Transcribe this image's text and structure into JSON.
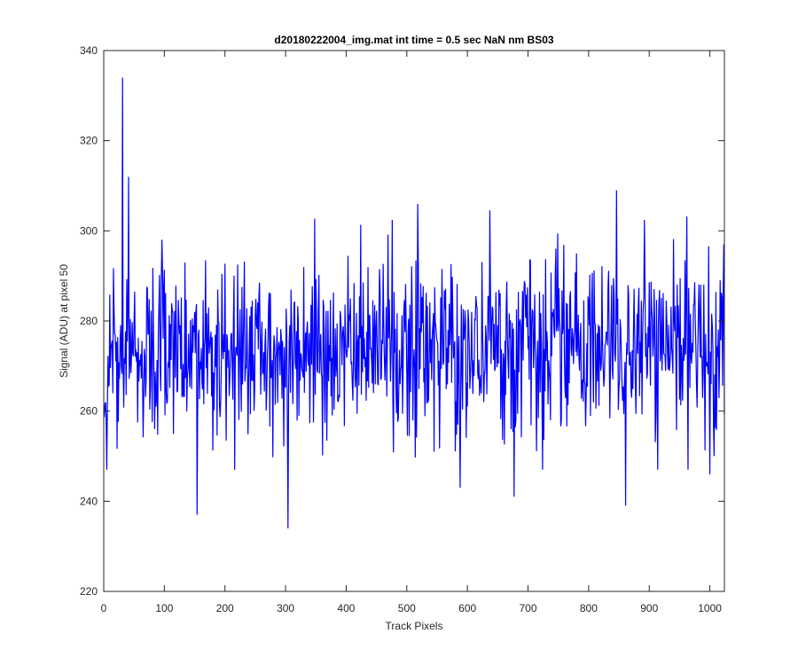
{
  "chart_data": {
    "type": "line",
    "title": "d20180222004_img.mat int time = 0.5 sec  NaN nm BS03",
    "xlabel": "Track Pixels",
    "ylabel": "Signal (ADU) at pixel 50",
    "xlim": [
      0,
      1024
    ],
    "ylim": [
      220,
      340
    ],
    "xticks": [
      0,
      100,
      200,
      300,
      400,
      500,
      600,
      700,
      800,
      900,
      1000
    ],
    "yticks": [
      220,
      240,
      260,
      280,
      300,
      320,
      340
    ],
    "grid": false,
    "legend": "none",
    "series": [
      {
        "color": "#0000ff",
        "x_start": 1,
        "x_step": 1,
        "count": 1024,
        "mean": 274,
        "noise_std": 9.5,
        "peaks": [
          {
            "x": 31,
            "y": 334
          },
          {
            "x": 41,
            "y": 312
          },
          {
            "x": 154,
            "y": 237
          },
          {
            "x": 304,
            "y": 234
          },
          {
            "x": 588,
            "y": 243
          },
          {
            "x": 677,
            "y": 241
          },
          {
            "x": 846,
            "y": 309
          },
          {
            "x": 861,
            "y": 239
          },
          {
            "x": 1000,
            "y": 246
          },
          {
            "x": 1023,
            "y": 297
          }
        ]
      }
    ]
  },
  "icons": {
    "chart-line-color": "#0000ff"
  }
}
